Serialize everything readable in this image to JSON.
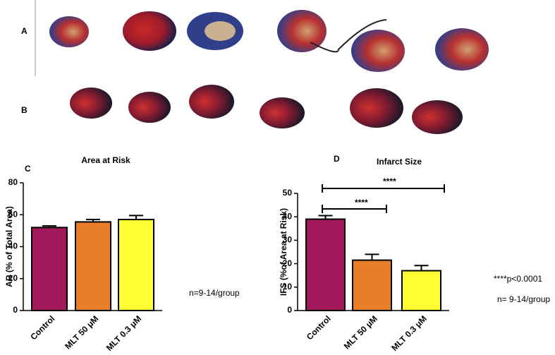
{
  "panel_labels": [
    "A",
    "B"
  ],
  "chart_data": [
    {
      "type": "bar",
      "panel": "C",
      "title": "Area at Risk",
      "ylabel": "AR (% of Total Area)",
      "categories": [
        "Control",
        "MLT 50 μM",
        "MLT 0.3 μM"
      ],
      "values": [
        52,
        55.5,
        57
      ],
      "errors": [
        1,
        1.5,
        2.5
      ],
      "colors": [
        "#a3195b",
        "#e87d2a",
        "#ffff33"
      ],
      "ylim": [
        0,
        80
      ],
      "yticks": [
        0,
        20,
        40,
        60,
        80
      ],
      "annotations": [
        "n=9-14/group"
      ]
    },
    {
      "type": "bar",
      "panel": "D",
      "title": "Infarct Size",
      "ylabel": "IFS (%of Area at Risk)",
      "categories": [
        "Control",
        "MLT 50 μM",
        "MLT 0.3 μM"
      ],
      "values": [
        39,
        21.5,
        17
      ],
      "errors": [
        1.5,
        2.5,
        2.2
      ],
      "colors": [
        "#a3195b",
        "#e87d2a",
        "#ffff33"
      ],
      "ylim": [
        0,
        50
      ],
      "yticks": [
        0,
        10,
        20,
        30,
        40,
        50
      ],
      "annotations": [
        "****",
        "****",
        "****p<0.0001",
        "n= 9-14/group"
      ]
    }
  ]
}
